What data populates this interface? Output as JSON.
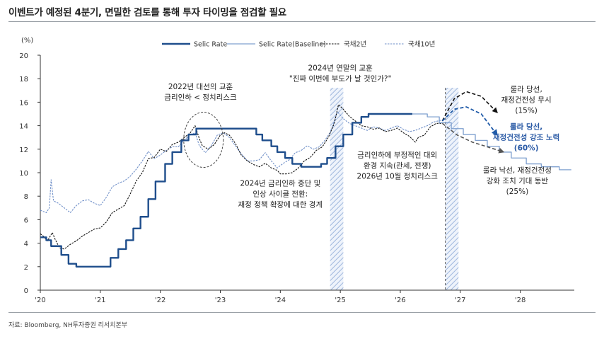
{
  "page": {
    "title": "이벤트가 예정된 4분기, 면밀한 검토를 통해 투자 타이밍을 점검할 필요",
    "source": "자료: Bloomberg, NH투자증권 리서치본부"
  },
  "colors": {
    "selic": "#1f4e8c",
    "selic_baseline": "#7fa0cf",
    "kr2y": "#111111",
    "kr10y": "#6f8fc8",
    "shade": "#9fb7dd",
    "scenario_up": "#111111",
    "scenario_mid": "#1f5aa8",
    "scenario_down": "#555555"
  },
  "chart_data": {
    "type": "line",
    "yunit": "(%)",
    "ylim": [
      0,
      20
    ],
    "yticks": [
      0,
      2,
      4,
      6,
      8,
      10,
      12,
      14,
      16,
      18,
      20
    ],
    "xlim": [
      2020.0,
      2028.9
    ],
    "xticks": [
      {
        "v": 2020,
        "label": "'20"
      },
      {
        "v": 2021,
        "label": "'21"
      },
      {
        "v": 2022,
        "label": "'22"
      },
      {
        "v": 2023,
        "label": "'23"
      },
      {
        "v": 2024,
        "label": "'24"
      },
      {
        "v": 2025,
        "label": "'25"
      },
      {
        "v": 2026,
        "label": "'26"
      },
      {
        "v": 2027,
        "label": "'27"
      },
      {
        "v": 2028,
        "label": "'28"
      }
    ],
    "legend": [
      "Selic Rate",
      "Selic Rate(Baseline)",
      "국채2년",
      "국채10년"
    ],
    "shaded_periods": [
      [
        2024.83,
        2025.05
      ],
      [
        2026.75,
        2026.97
      ]
    ],
    "vline": 2026.75,
    "series": [
      {
        "name": "Selic Rate",
        "style": "step",
        "points": [
          [
            2020.0,
            4.5
          ],
          [
            2020.1,
            4.25
          ],
          [
            2020.18,
            3.75
          ],
          [
            2020.35,
            3.0
          ],
          [
            2020.47,
            2.25
          ],
          [
            2020.6,
            2.0
          ],
          [
            2021.17,
            2.75
          ],
          [
            2021.3,
            3.5
          ],
          [
            2021.43,
            4.25
          ],
          [
            2021.55,
            5.25
          ],
          [
            2021.67,
            6.25
          ],
          [
            2021.8,
            7.75
          ],
          [
            2021.92,
            9.25
          ],
          [
            2022.08,
            10.75
          ],
          [
            2022.2,
            11.75
          ],
          [
            2022.35,
            12.75
          ],
          [
            2022.47,
            13.25
          ],
          [
            2022.6,
            13.75
          ],
          [
            2023.6,
            13.25
          ],
          [
            2023.7,
            12.75
          ],
          [
            2023.85,
            12.25
          ],
          [
            2023.95,
            11.75
          ],
          [
            2024.08,
            11.25
          ],
          [
            2024.2,
            10.75
          ],
          [
            2024.35,
            10.5
          ],
          [
            2024.68,
            10.75
          ],
          [
            2024.78,
            11.25
          ],
          [
            2024.92,
            12.25
          ],
          [
            2025.05,
            13.25
          ],
          [
            2025.2,
            14.25
          ],
          [
            2025.35,
            14.75
          ],
          [
            2025.47,
            15.0
          ],
          [
            2026.2,
            15.0
          ]
        ]
      },
      {
        "name": "Selic Rate(Baseline)",
        "style": "step",
        "points": [
          [
            2026.2,
            15.0
          ],
          [
            2026.45,
            14.75
          ],
          [
            2026.65,
            14.25
          ],
          [
            2026.85,
            13.75
          ],
          [
            2027.05,
            13.25
          ],
          [
            2027.25,
            12.75
          ],
          [
            2027.45,
            12.25
          ],
          [
            2027.65,
            11.75
          ],
          [
            2027.85,
            11.25
          ],
          [
            2028.1,
            10.75
          ],
          [
            2028.35,
            10.5
          ],
          [
            2028.65,
            10.25
          ],
          [
            2028.85,
            10.25
          ]
        ]
      },
      {
        "name": "국채2년",
        "style": "line",
        "points": [
          [
            2020.0,
            4.8
          ],
          [
            2020.05,
            4.6
          ],
          [
            2020.12,
            4.2
          ],
          [
            2020.2,
            4.9
          ],
          [
            2020.25,
            4.3
          ],
          [
            2020.32,
            3.6
          ],
          [
            2020.4,
            3.5
          ],
          [
            2020.5,
            3.9
          ],
          [
            2020.6,
            4.2
          ],
          [
            2020.7,
            4.6
          ],
          [
            2020.8,
            4.9
          ],
          [
            2020.9,
            5.2
          ],
          [
            2021.0,
            5.3
          ],
          [
            2021.1,
            5.8
          ],
          [
            2021.2,
            6.6
          ],
          [
            2021.3,
            6.9
          ],
          [
            2021.4,
            7.2
          ],
          [
            2021.5,
            8.2
          ],
          [
            2021.6,
            9.3
          ],
          [
            2021.7,
            10.0
          ],
          [
            2021.8,
            11.2
          ],
          [
            2021.9,
            11.3
          ],
          [
            2022.0,
            12.0
          ],
          [
            2022.1,
            11.8
          ],
          [
            2022.2,
            12.4
          ],
          [
            2022.3,
            12.6
          ],
          [
            2022.4,
            13.0
          ],
          [
            2022.5,
            13.4
          ],
          [
            2022.58,
            14.0
          ],
          [
            2022.65,
            12.9
          ],
          [
            2022.7,
            12.3
          ],
          [
            2022.8,
            12.0
          ],
          [
            2022.9,
            12.4
          ],
          [
            2023.0,
            13.2
          ],
          [
            2023.07,
            13.4
          ],
          [
            2023.15,
            13.2
          ],
          [
            2023.25,
            12.5
          ],
          [
            2023.35,
            11.5
          ],
          [
            2023.45,
            11.0
          ],
          [
            2023.55,
            10.7
          ],
          [
            2023.65,
            10.5
          ],
          [
            2023.75,
            10.8
          ],
          [
            2023.85,
            10.4
          ],
          [
            2023.95,
            10.2
          ],
          [
            2024.0,
            9.9
          ],
          [
            2024.1,
            9.9
          ],
          [
            2024.2,
            10.0
          ],
          [
            2024.3,
            10.4
          ],
          [
            2024.4,
            11.0
          ],
          [
            2024.5,
            11.3
          ],
          [
            2024.6,
            11.9
          ],
          [
            2024.7,
            12.2
          ],
          [
            2024.8,
            13.0
          ],
          [
            2024.9,
            14.2
          ],
          [
            2024.97,
            15.8
          ],
          [
            2025.05,
            15.4
          ],
          [
            2025.15,
            14.8
          ],
          [
            2025.25,
            14.4
          ],
          [
            2025.35,
            14.0
          ],
          [
            2025.45,
            13.9
          ],
          [
            2025.55,
            13.7
          ],
          [
            2025.65,
            13.8
          ],
          [
            2025.75,
            13.5
          ],
          [
            2025.85,
            13.6
          ],
          [
            2025.95,
            13.8
          ],
          [
            2026.05,
            13.4
          ],
          [
            2026.15,
            13.1
          ],
          [
            2026.25,
            12.6
          ],
          [
            2026.3,
            13.0
          ],
          [
            2026.4,
            13.2
          ],
          [
            2026.5,
            13.9
          ],
          [
            2026.6,
            14.2
          ],
          [
            2026.7,
            14.2
          ]
        ]
      },
      {
        "name": "국채10년",
        "style": "line",
        "points": [
          [
            2020.0,
            6.8
          ],
          [
            2020.1,
            6.6
          ],
          [
            2020.15,
            7.0
          ],
          [
            2020.18,
            9.4
          ],
          [
            2020.22,
            7.6
          ],
          [
            2020.3,
            7.4
          ],
          [
            2020.4,
            7.0
          ],
          [
            2020.5,
            6.6
          ],
          [
            2020.6,
            7.2
          ],
          [
            2020.7,
            7.6
          ],
          [
            2020.8,
            7.7
          ],
          [
            2020.9,
            7.4
          ],
          [
            2021.0,
            7.2
          ],
          [
            2021.1,
            7.9
          ],
          [
            2021.2,
            8.8
          ],
          [
            2021.3,
            9.1
          ],
          [
            2021.4,
            9.3
          ],
          [
            2021.5,
            9.7
          ],
          [
            2021.6,
            10.3
          ],
          [
            2021.7,
            11.0
          ],
          [
            2021.8,
            11.8
          ],
          [
            2021.9,
            11.2
          ],
          [
            2022.0,
            11.5
          ],
          [
            2022.1,
            11.9
          ],
          [
            2022.2,
            12.2
          ],
          [
            2022.3,
            12.2
          ],
          [
            2022.4,
            12.8
          ],
          [
            2022.5,
            13.2
          ],
          [
            2022.58,
            13.4
          ],
          [
            2022.65,
            12.3
          ],
          [
            2022.75,
            11.7
          ],
          [
            2022.85,
            12.3
          ],
          [
            2022.95,
            13.2
          ],
          [
            2023.05,
            13.4
          ],
          [
            2023.15,
            13.0
          ],
          [
            2023.25,
            12.3
          ],
          [
            2023.35,
            11.6
          ],
          [
            2023.45,
            11.0
          ],
          [
            2023.55,
            11.0
          ],
          [
            2023.65,
            11.1
          ],
          [
            2023.75,
            11.7
          ],
          [
            2023.85,
            11.0
          ],
          [
            2023.95,
            10.4
          ],
          [
            2024.05,
            10.8
          ],
          [
            2024.15,
            11.1
          ],
          [
            2024.25,
            11.7
          ],
          [
            2024.35,
            11.9
          ],
          [
            2024.45,
            12.3
          ],
          [
            2024.55,
            12.0
          ],
          [
            2024.65,
            12.2
          ],
          [
            2024.75,
            12.8
          ],
          [
            2024.85,
            13.6
          ],
          [
            2024.95,
            15.2
          ],
          [
            2025.05,
            14.6
          ],
          [
            2025.15,
            14.2
          ],
          [
            2025.25,
            14.0
          ],
          [
            2025.35,
            13.8
          ],
          [
            2025.45,
            13.6
          ],
          [
            2025.55,
            13.9
          ],
          [
            2025.65,
            13.8
          ],
          [
            2025.75,
            13.6
          ],
          [
            2025.85,
            13.8
          ],
          [
            2025.95,
            14.0
          ],
          [
            2026.05,
            13.7
          ],
          [
            2026.15,
            13.5
          ],
          [
            2026.25,
            13.6
          ],
          [
            2026.35,
            13.8
          ],
          [
            2026.45,
            14.0
          ],
          [
            2026.55,
            14.3
          ],
          [
            2026.7,
            14.5
          ]
        ]
      }
    ],
    "scenarios": [
      {
        "key": "up",
        "points": [
          [
            2026.7,
            14.4
          ],
          [
            2026.9,
            16.3
          ],
          [
            2027.1,
            16.9
          ],
          [
            2027.35,
            16.5
          ],
          [
            2027.6,
            15.2
          ]
        ]
      },
      {
        "key": "mid",
        "points": [
          [
            2026.7,
            14.4
          ],
          [
            2026.9,
            15.4
          ],
          [
            2027.1,
            15.6
          ],
          [
            2027.35,
            15.0
          ],
          [
            2027.6,
            13.3
          ]
        ]
      },
      {
        "key": "down",
        "points": [
          [
            2026.7,
            14.2
          ],
          [
            2026.95,
            13.2
          ],
          [
            2027.2,
            12.6
          ],
          [
            2027.45,
            12.2
          ],
          [
            2027.7,
            11.8
          ]
        ]
      }
    ],
    "annotations": [
      {
        "id": "a2022",
        "lines": [
          "2022년 대선의 교훈",
          "금리인하 < 정치리스크"
        ],
        "x": 2022.67,
        "y": 17.1,
        "style": "normal"
      },
      {
        "id": "a2024top",
        "lines": [
          "2024년 연말의 교훈",
          "\"진짜 이번에 부도가 날 것인가?\""
        ],
        "x": 2025.0,
        "y": 18.7,
        "style": "normal"
      },
      {
        "id": "a2024mid",
        "lines": [
          "2024년 금리인하 중단 및",
          "인상 사이클 전환:",
          "재정 정책 확장에 대한 경계"
        ],
        "x": 2024.0,
        "y": 8.9,
        "style": "normal"
      },
      {
        "id": "a2026",
        "lines": [
          "금리인하에 부정적인 대외",
          "환경 지속(관세, 전쟁)",
          "2026년 10월 정치리스크"
        ],
        "x": 2025.95,
        "y": 11.3,
        "style": "normal"
      },
      {
        "id": "aup",
        "lines": [
          "룰라 당선,",
          "재정건전성 무시",
          "(15%)"
        ],
        "x": 2028.1,
        "y": 16.9,
        "style": "normal"
      },
      {
        "id": "amid",
        "lines": [
          "룰라 당선,",
          "재정건전성 강조 노력",
          "(60%)"
        ],
        "x": 2028.1,
        "y": 13.7,
        "style": "blue"
      },
      {
        "id": "adown",
        "lines": [
          "룰라 낙선, 재정건전성",
          "강화 조치 기대 동반",
          "(25%)"
        ],
        "x": 2027.95,
        "y": 10.0,
        "style": "normal"
      }
    ],
    "circle": {
      "x": 2022.72,
      "y": 12.8,
      "rx_years": 0.33,
      "ry_pct": 2.35
    }
  }
}
